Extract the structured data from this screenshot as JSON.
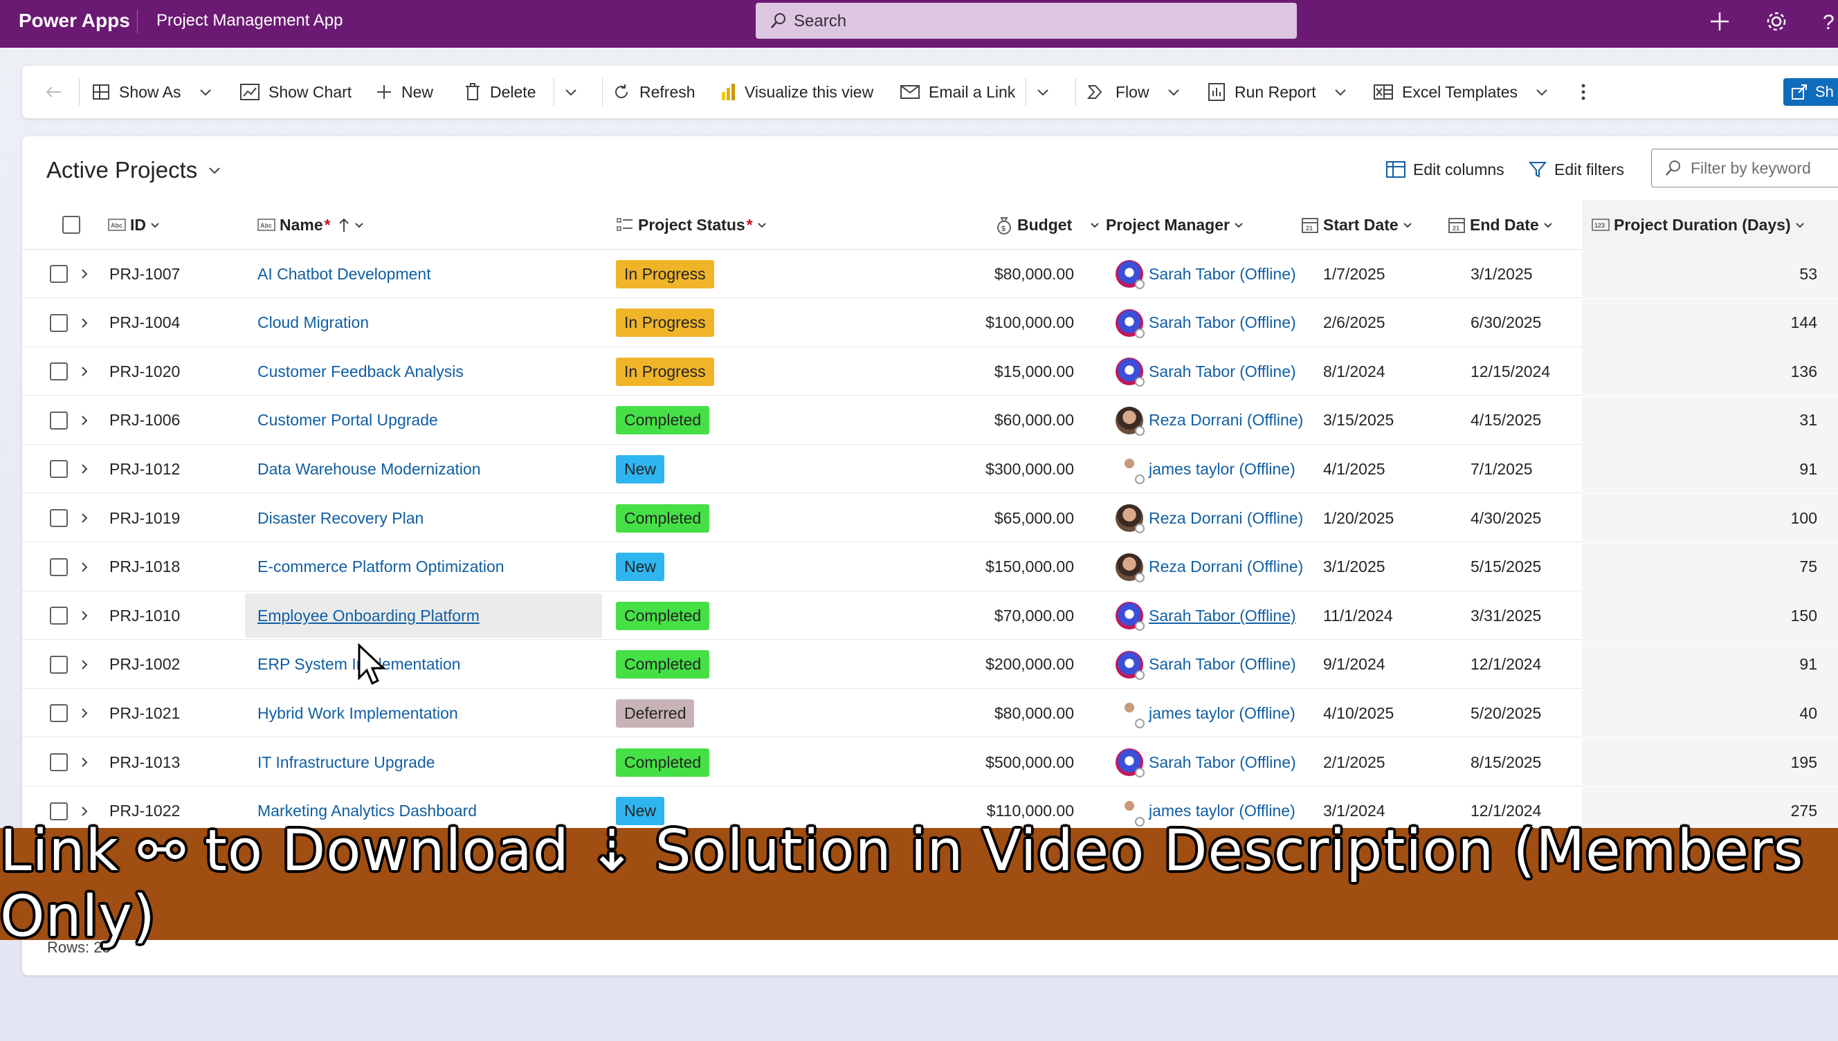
{
  "appbar": {
    "brand": "Power Apps",
    "app_name": "Project Management App",
    "search_placeholder": "Search",
    "bg_color": "#6b1a73"
  },
  "commandbar": {
    "show_as": "Show As",
    "show_chart": "Show Chart",
    "new": "New",
    "delete": "Delete",
    "refresh": "Refresh",
    "visualize": "Visualize this view",
    "email_link": "Email a Link",
    "flow": "Flow",
    "run_report": "Run Report",
    "excel_templates": "Excel Templates",
    "share": "Sh"
  },
  "view": {
    "title": "Active Projects",
    "edit_columns": "Edit columns",
    "edit_filters": "Edit filters",
    "filter_placeholder": "Filter by keyword"
  },
  "columns": {
    "id": "ID",
    "name": "Name",
    "status": "Project Status",
    "budget": "Budget",
    "manager": "Project Manager",
    "start": "Start Date",
    "end": "End Date",
    "duration": "Project Duration (Days)"
  },
  "status_colors": {
    "In Progress": "#f0b429",
    "Completed": "#45e045",
    "New": "#2fb5f0",
    "Deferred": "#c7b3b6"
  },
  "rows": [
    {
      "id": "PRJ-1007",
      "name": "AI Chatbot Development",
      "status": "In Progress",
      "budget": "$80,000.00",
      "manager": "Sarah Tabor (Offline)",
      "avatar": "sarah",
      "start": "1/7/2025",
      "end": "3/1/2025",
      "duration": "53"
    },
    {
      "id": "PRJ-1004",
      "name": "Cloud Migration",
      "status": "In Progress",
      "budget": "$100,000.00",
      "manager": "Sarah Tabor (Offline)",
      "avatar": "sarah",
      "start": "2/6/2025",
      "end": "6/30/2025",
      "duration": "144"
    },
    {
      "id": "PRJ-1020",
      "name": "Customer Feedback Analysis",
      "status": "In Progress",
      "budget": "$15,000.00",
      "manager": "Sarah Tabor (Offline)",
      "avatar": "sarah",
      "start": "8/1/2024",
      "end": "12/15/2024",
      "duration": "136"
    },
    {
      "id": "PRJ-1006",
      "name": "Customer Portal Upgrade",
      "status": "Completed",
      "budget": "$60,000.00",
      "manager": "Reza Dorrani (Offline)",
      "avatar": "reza",
      "start": "3/15/2025",
      "end": "4/15/2025",
      "duration": "31"
    },
    {
      "id": "PRJ-1012",
      "name": "Data Warehouse Modernization",
      "status": "New",
      "budget": "$300,000.00",
      "manager": "james taylor (Offline)",
      "avatar": "james",
      "start": "4/1/2025",
      "end": "7/1/2025",
      "duration": "91"
    },
    {
      "id": "PRJ-1019",
      "name": "Disaster Recovery Plan",
      "status": "Completed",
      "budget": "$65,000.00",
      "manager": "Reza Dorrani (Offline)",
      "avatar": "reza",
      "start": "1/20/2025",
      "end": "4/30/2025",
      "duration": "100"
    },
    {
      "id": "PRJ-1018",
      "name": "E-commerce Platform Optimization",
      "status": "New",
      "budget": "$150,000.00",
      "manager": "Reza Dorrani (Offline)",
      "avatar": "reza",
      "start": "3/1/2025",
      "end": "5/15/2025",
      "duration": "75"
    },
    {
      "id": "PRJ-1010",
      "name": "Employee Onboarding Platform",
      "status": "Completed",
      "budget": "$70,000.00",
      "manager": "Sarah Tabor (Offline)",
      "avatar": "sarah",
      "start": "11/1/2024",
      "end": "3/31/2025",
      "duration": "150"
    },
    {
      "id": "PRJ-1002",
      "name": "ERP System Implementation",
      "status": "Completed",
      "budget": "$200,000.00",
      "manager": "Sarah Tabor (Offline)",
      "avatar": "sarah",
      "start": "9/1/2024",
      "end": "12/1/2024",
      "duration": "91"
    },
    {
      "id": "PRJ-1021",
      "name": "Hybrid Work Implementation",
      "status": "Deferred",
      "budget": "$80,000.00",
      "manager": "james taylor (Offline)",
      "avatar": "james",
      "start": "4/10/2025",
      "end": "5/20/2025",
      "duration": "40"
    },
    {
      "id": "PRJ-1013",
      "name": "IT Infrastructure Upgrade",
      "status": "Completed",
      "budget": "$500,000.00",
      "manager": "Sarah Tabor (Offline)",
      "avatar": "sarah",
      "start": "2/1/2025",
      "end": "8/15/2025",
      "duration": "195"
    },
    {
      "id": "PRJ-1022",
      "name": "Marketing Analytics Dashboard",
      "status": "New",
      "budget": "$110,000.00",
      "manager": "james taylor (Offline)",
      "avatar": "james",
      "start": "3/1/2024",
      "end": "12/1/2024",
      "duration": "275"
    }
  ],
  "footer": {
    "rows_count": "Rows: 23"
  },
  "banner": {
    "text": "Link ⚯ to Download ⇣ Solution in Video Description (Members Only)"
  }
}
